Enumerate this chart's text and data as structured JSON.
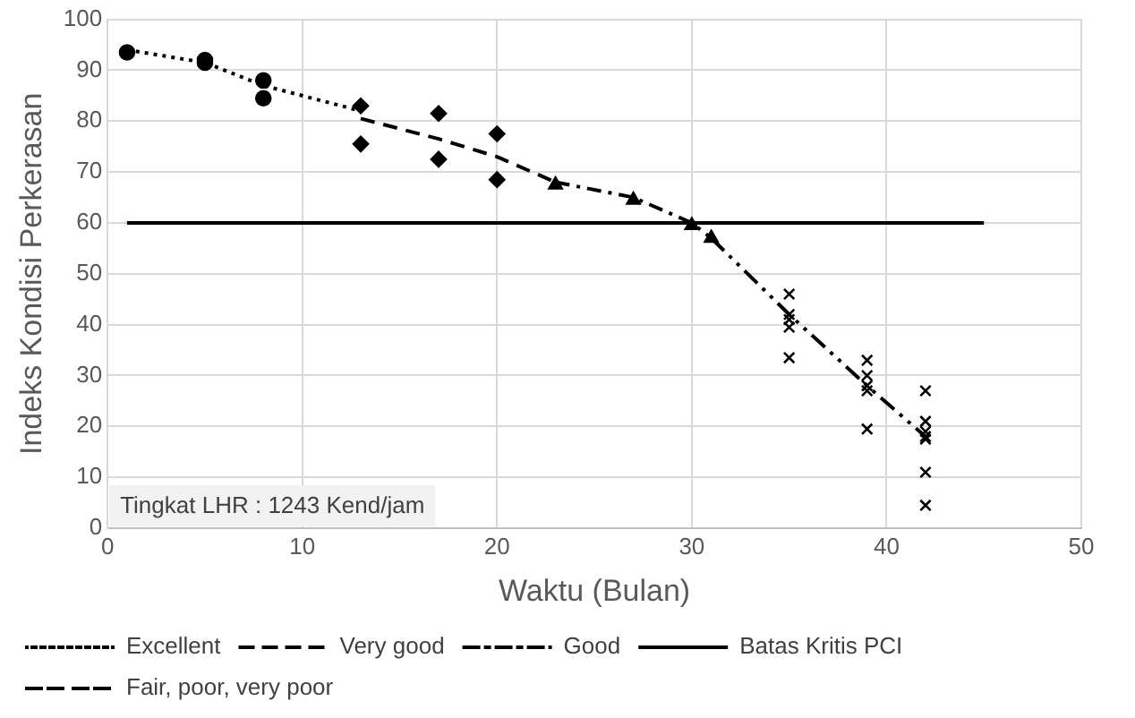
{
  "chart_data": {
    "type": "scatter",
    "xlabel": "Waktu (Bulan)",
    "ylabel": "Indeks Kondisi Perkerasan",
    "xlim": [
      0,
      50
    ],
    "xticks": [
      0,
      10,
      20,
      30,
      40,
      50
    ],
    "ylim": [
      0,
      100
    ],
    "yticks": [
      0,
      10,
      20,
      30,
      40,
      50,
      60,
      70,
      80,
      90,
      100
    ],
    "grid": true,
    "legend": "bottom",
    "annotations": [
      "Tingkat LHR : 1243 Kend/jam"
    ],
    "series": [
      {
        "marker": "circle",
        "color": "#000000",
        "x": [
          1,
          5,
          5,
          8,
          8
        ],
        "values": [
          93.5,
          92,
          91.5,
          88,
          84.5
        ]
      },
      {
        "marker": "diamond",
        "color": "#000000",
        "x": [
          13,
          13,
          17,
          17,
          20,
          20
        ],
        "values": [
          83,
          75.5,
          81.5,
          72.5,
          77.5,
          68.5
        ]
      },
      {
        "marker": "triangle",
        "color": "#000000",
        "x": [
          23,
          27,
          30,
          31
        ],
        "values": [
          67.5,
          64.5,
          59.5,
          57
        ]
      },
      {
        "marker": "cross",
        "color": "#000000",
        "x": [
          35,
          35,
          35,
          35,
          35,
          39,
          39,
          39,
          39,
          39,
          42,
          42,
          42,
          42,
          42,
          42,
          42
        ],
        "values": [
          46,
          42,
          41,
          39.5,
          33.5,
          33,
          30,
          28,
          27,
          19.5,
          27,
          21,
          19,
          18,
          17.5,
          11,
          4.5
        ]
      },
      {
        "type": "line",
        "name": "Excellent",
        "line_style": "dotted",
        "color": "#000000",
        "x": [
          1,
          5,
          8,
          13
        ],
        "values": [
          94,
          91.5,
          87,
          82
        ]
      },
      {
        "type": "line",
        "name": "Very good",
        "line_style": "dashed",
        "color": "#000000",
        "x": [
          13,
          17,
          20,
          23
        ],
        "values": [
          80.5,
          76.5,
          73,
          68
        ]
      },
      {
        "type": "line",
        "name": "Good",
        "line_style": "dashdot",
        "color": "#000000",
        "x": [
          23,
          27,
          30,
          31
        ],
        "values": [
          68,
          65,
          60,
          57
        ]
      },
      {
        "type": "line",
        "name": "Batas Kritis PCI",
        "line_style": "solid",
        "color": "#000000",
        "x": [
          1,
          45
        ],
        "values": [
          60,
          60
        ]
      },
      {
        "type": "line",
        "name": "Fair, poor, very poor",
        "line_style": "dashdotdot",
        "color": "#000000",
        "x": [
          31,
          35,
          39,
          42
        ],
        "values": [
          57,
          42,
          28,
          18
        ]
      }
    ]
  }
}
